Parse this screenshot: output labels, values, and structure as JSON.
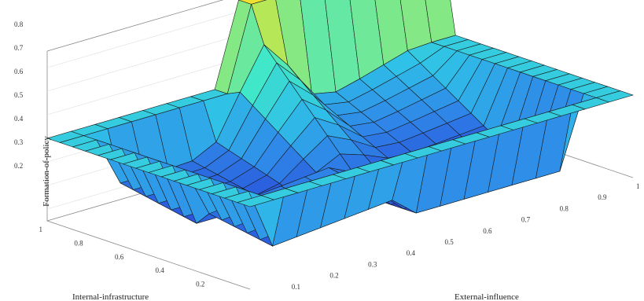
{
  "chart_data": {
    "type": "surface",
    "title": "",
    "xlabel": "Internal-infrastructure",
    "ylabel": "External-influence",
    "zlabel": "Formation-of-policy",
    "x_ticks": [
      "0.2",
      "0.4",
      "0.6",
      "0.8",
      "1"
    ],
    "y_ticks": [
      "0.1",
      "0.2",
      "0.3",
      "0.4",
      "0.5",
      "0.6",
      "0.7",
      "0.8",
      "0.9",
      "1"
    ],
    "z_ticks": [
      "0.2",
      "0.3",
      "0.4",
      "0.5",
      "0.6",
      "0.7",
      "0.8"
    ],
    "x": [
      0,
      0.0625,
      0.125,
      0.1875,
      0.25,
      0.3125,
      0.375,
      0.4375,
      0.5,
      0.5625,
      0.625,
      0.6875,
      0.75,
      0.8125,
      0.875,
      0.9375,
      1
    ],
    "y": [
      0,
      0.0625,
      0.125,
      0.1875,
      0.25,
      0.3125,
      0.375,
      0.4375,
      0.5,
      0.5625,
      0.625,
      0.6875,
      0.75,
      0.8125,
      0.875,
      0.9375,
      1
    ],
    "zlim": [
      0.15,
      0.87
    ],
    "grid": true,
    "colormap": [
      "#2846d8",
      "#2f86e8",
      "#2fc0e8",
      "#40e8c8",
      "#a8e860",
      "#f0e030"
    ],
    "shape_note_values": {
      "edge_level": 0.5,
      "front_rim": 0.25,
      "back_plateau": 0.85,
      "floor": 0.2
    }
  }
}
